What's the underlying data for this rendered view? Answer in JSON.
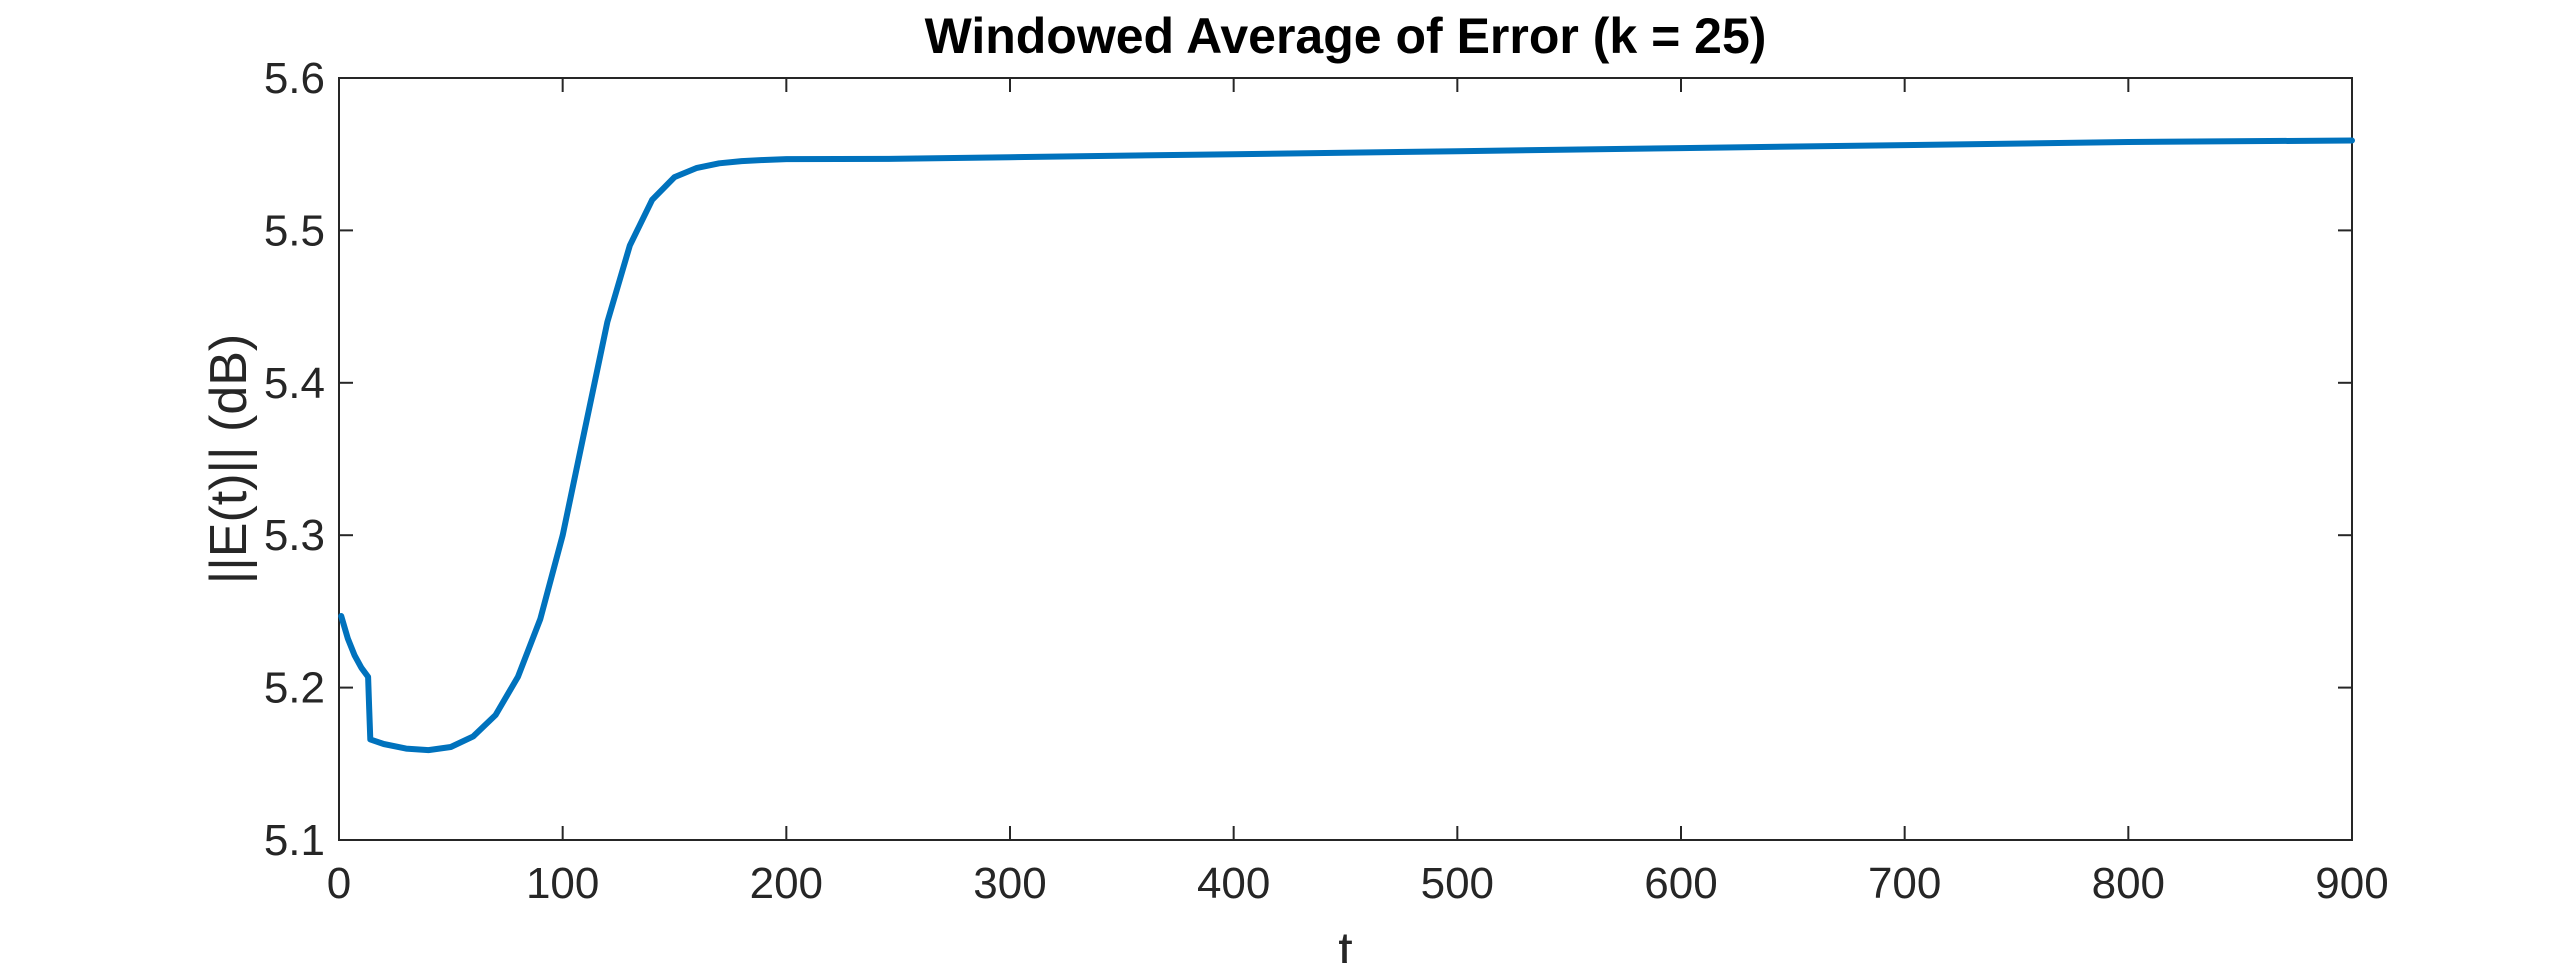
{
  "chart_data": {
    "type": "line",
    "title": "Windowed Average of Error (k = 25)",
    "xlabel": "t",
    "ylabel": "||E(t)|| (dB)",
    "xlim": [
      0,
      900
    ],
    "ylim": [
      5.1,
      5.6
    ],
    "xticks": [
      0,
      100,
      200,
      300,
      400,
      500,
      600,
      700,
      800,
      900
    ],
    "xtick_labels": [
      "0",
      "100",
      "200",
      "300",
      "400",
      "500",
      "600",
      "700",
      "800",
      "900"
    ],
    "yticks": [
      5.1,
      5.2,
      5.3,
      5.4,
      5.5,
      5.6
    ],
    "ytick_labels": [
      "5.1",
      "5.2",
      "5.3",
      "5.4",
      "5.5",
      "5.6"
    ],
    "grid": false,
    "box": true,
    "colors": {
      "series": "#0072BD",
      "axes": "#262626"
    },
    "series": [
      {
        "x": [
          1,
          4,
          7,
          10,
          13,
          13.5,
          14,
          20,
          30,
          40,
          50,
          60,
          70,
          80,
          90,
          100,
          110,
          120,
          130,
          140,
          150,
          160,
          170,
          180,
          190,
          200,
          250,
          300,
          400,
          500,
          600,
          700,
          800,
          900
        ],
        "y": [
          5.247,
          5.232,
          5.221,
          5.213,
          5.207,
          5.186,
          5.166,
          5.163,
          5.16,
          5.159,
          5.161,
          5.168,
          5.182,
          5.207,
          5.245,
          5.3,
          5.37,
          5.44,
          5.49,
          5.52,
          5.535,
          5.541,
          5.544,
          5.5455,
          5.5462,
          5.5468,
          5.547,
          5.548,
          5.55,
          5.552,
          5.554,
          5.556,
          5.558,
          5.559
        ]
      }
    ]
  }
}
